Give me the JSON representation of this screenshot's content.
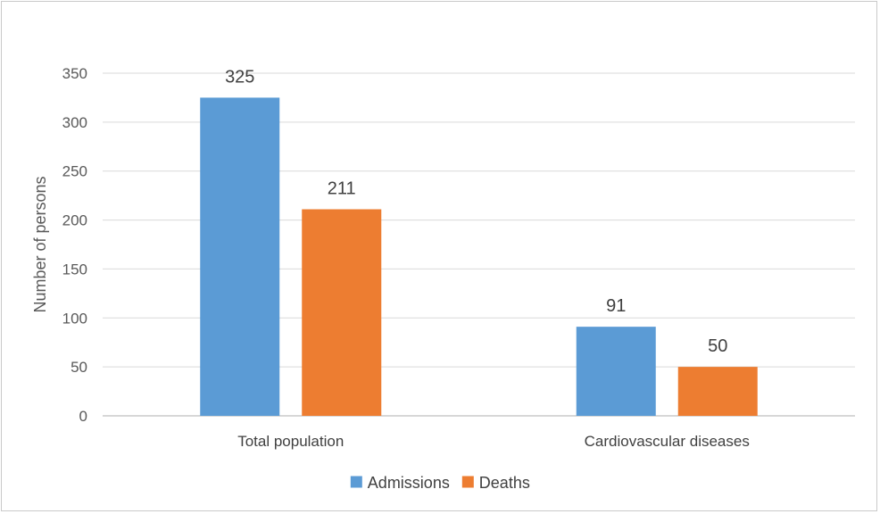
{
  "chart_data": {
    "type": "bar",
    "categories": [
      "Total population",
      "Cardiovascular diseases"
    ],
    "series": [
      {
        "name": "Admissions",
        "values": [
          325,
          91
        ],
        "color": "#5b9bd5"
      },
      {
        "name": "Deaths",
        "values": [
          211,
          50
        ],
        "color": "#ed7d31"
      }
    ],
    "title": "",
    "xlabel": "",
    "ylabel": "Number of persons",
    "ylim": [
      0,
      350
    ],
    "yticks": [
      0,
      50,
      100,
      150,
      200,
      250,
      300,
      350
    ],
    "grid": true,
    "legend_position": "bottom",
    "data_labels": true
  }
}
